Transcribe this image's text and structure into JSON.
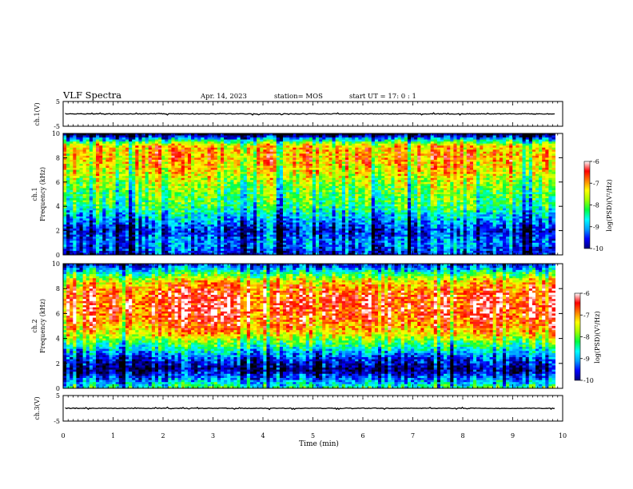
{
  "header": {
    "title": "VLF Spectra",
    "date": "Apr. 14, 2023",
    "station": "station= MOS",
    "start": "start  UT =   17: 0   : 1"
  },
  "colors": {
    "scale": [
      "#000000",
      "#00007a",
      "#0000ff",
      "#00a0ff",
      "#00ffff",
      "#00ff40",
      "#a0ff00",
      "#ffff00",
      "#ff8000",
      "#ff0000",
      "#ffffff"
    ]
  },
  "chart_data": [
    {
      "type": "line",
      "panel": "ch1-waveform",
      "ylabel": "ch.1(V)",
      "ylim": [
        -5,
        5
      ],
      "yticks": [
        5,
        -5
      ],
      "xlim": [
        0,
        10
      ],
      "baseline": 0
    },
    {
      "type": "heatmap",
      "panel": "ch1-spectrogram",
      "ylabel": "ch.1\nFrequency (kHz)",
      "ylim": [
        0,
        10
      ],
      "yticks": [
        0,
        2,
        4,
        6,
        8,
        10
      ],
      "xlim": [
        0,
        10
      ],
      "data_end_min": 9.85,
      "colorbar": {
        "label": "log(PSD)(V²/Hz)",
        "range": [
          -10,
          -6
        ],
        "ticks": [
          -6,
          -7,
          -8,
          -9,
          -10
        ]
      },
      "profile_khz": [
        0,
        1,
        2,
        3,
        4,
        5,
        6,
        7,
        8,
        9,
        9.5,
        10
      ],
      "profile_logpsd": [
        -9.2,
        -8.8,
        -9.2,
        -8.6,
        -8.0,
        -7.8,
        -7.5,
        -7.1,
        -6.9,
        -7.0,
        -8.5,
        -10
      ]
    },
    {
      "type": "heatmap",
      "panel": "ch2-spectrogram",
      "ylabel": "ch.2\nFrequency (kHz)",
      "ylim": [
        0,
        10
      ],
      "yticks": [
        0,
        2,
        4,
        6,
        8,
        10
      ],
      "xlim": [
        0,
        10
      ],
      "data_end_min": 9.85,
      "colorbar": {
        "label": "log(PSD)(V²/Hz)",
        "range": [
          -10,
          -6
        ],
        "ticks": [
          -6,
          -7,
          -8,
          -9,
          -10
        ]
      },
      "profile_khz": [
        0,
        0.5,
        1.5,
        2.5,
        3.5,
        4.5,
        5.5,
        6.5,
        7.5,
        8.5,
        9.2,
        10
      ],
      "profile_logpsd": [
        -8.0,
        -8.6,
        -9.6,
        -9.0,
        -8.0,
        -7.0,
        -6.6,
        -6.4,
        -6.5,
        -7.0,
        -8.0,
        -9.3
      ]
    },
    {
      "type": "line",
      "panel": "ch3-waveform",
      "ylabel": "ch.3(V)",
      "ylim": [
        -5,
        5
      ],
      "yticks": [
        5,
        -5
      ],
      "xlim": [
        0,
        10
      ],
      "xlabel": "Time  (min)",
      "xticks": [
        0,
        1,
        2,
        3,
        4,
        5,
        6,
        7,
        8,
        9,
        10
      ],
      "baseline": 0
    }
  ]
}
